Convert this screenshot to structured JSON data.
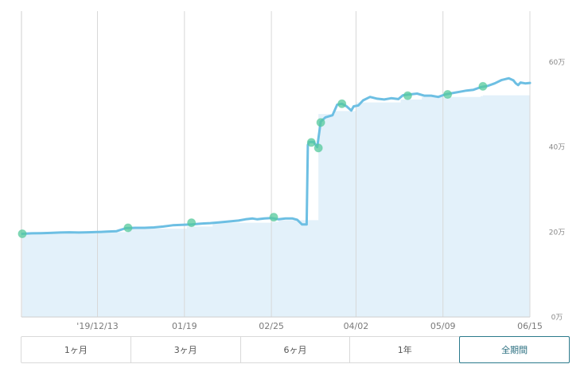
{
  "colors": {
    "line": "#6dbfe3",
    "area": "#e3f1fa",
    "marker": "#55c99c",
    "grid": "#d8d8d8",
    "active_tab_border": "#2b7a8c"
  },
  "chart_data": {
    "type": "line",
    "title": "",
    "xlabel": "",
    "ylabel": "",
    "x_tick_labels": [
      "'19/12/13",
      "01/19",
      "02/25",
      "04/02",
      "05/09",
      "06/15"
    ],
    "y_ticks": [
      0,
      200000,
      400000,
      600000
    ],
    "y_tick_labels": [
      "0万",
      "20万",
      "40万",
      "60万"
    ],
    "ylim": [
      0,
      720000
    ],
    "x_range_days": [
      0,
      216
    ],
    "x_tick_days": [
      32,
      69,
      106,
      142,
      179,
      216
    ],
    "grid": "vertical",
    "legend": "none",
    "series": [
      {
        "kind": "line",
        "points": [
          [
            0,
            196000
          ],
          [
            4,
            197000
          ],
          [
            8,
            197500
          ],
          [
            12,
            198000
          ],
          [
            16,
            199000
          ],
          [
            20,
            199500
          ],
          [
            24,
            199000
          ],
          [
            28,
            199500
          ],
          [
            32,
            200000
          ],
          [
            36,
            201000
          ],
          [
            40,
            202000
          ],
          [
            44,
            209000
          ],
          [
            48,
            210000
          ],
          [
            52,
            210000
          ],
          [
            56,
            211000
          ],
          [
            60,
            213000
          ],
          [
            64,
            216000
          ],
          [
            68,
            217000
          ],
          [
            72,
            218000
          ],
          [
            76,
            220000
          ],
          [
            80,
            221000
          ],
          [
            84,
            223000
          ],
          [
            88,
            225000
          ],
          [
            92,
            227000
          ],
          [
            95,
            230000
          ],
          [
            98,
            232000
          ],
          [
            100,
            230000
          ],
          [
            103,
            232000
          ],
          [
            106,
            233000
          ],
          [
            109,
            230000
          ],
          [
            112,
            232000
          ],
          [
            115,
            232000
          ],
          [
            117,
            229000
          ],
          [
            119,
            218000
          ],
          [
            121,
            218000
          ],
          [
            121.5,
            405000
          ],
          [
            122,
            412000
          ],
          [
            124,
            412000
          ],
          [
            125.5,
            400000
          ],
          [
            127,
            460000
          ],
          [
            129,
            470000
          ],
          [
            132,
            475000
          ],
          [
            134,
            500000
          ],
          [
            136,
            502000
          ],
          [
            138,
            496000
          ],
          [
            140,
            486000
          ],
          [
            141,
            496000
          ],
          [
            143,
            498000
          ],
          [
            145,
            510000
          ],
          [
            148,
            518000
          ],
          [
            151,
            514000
          ],
          [
            154,
            512000
          ],
          [
            157,
            515000
          ],
          [
            160,
            513000
          ],
          [
            162,
            522000
          ],
          [
            165,
            524000
          ],
          [
            168,
            526000
          ],
          [
            171,
            521000
          ],
          [
            174,
            521000
          ],
          [
            177,
            518000
          ],
          [
            180,
            524000
          ],
          [
            183,
            527000
          ],
          [
            186,
            530000
          ],
          [
            189,
            533000
          ],
          [
            192,
            535000
          ],
          [
            195,
            541000
          ],
          [
            198,
            544000
          ],
          [
            201,
            550000
          ],
          [
            204,
            558000
          ],
          [
            207,
            562000
          ],
          [
            209,
            557000
          ],
          [
            210,
            550000
          ],
          [
            211,
            546000
          ],
          [
            212,
            552000
          ],
          [
            214,
            550000
          ],
          [
            216,
            551000
          ]
        ]
      },
      {
        "kind": "area-step",
        "points": [
          [
            0,
            197000
          ],
          [
            32,
            200000
          ],
          [
            45,
            208000
          ],
          [
            70,
            213000
          ],
          [
            81,
            222000
          ],
          [
            106,
            224000
          ],
          [
            109,
            228000
          ],
          [
            121,
            228000
          ],
          [
            126,
            478000
          ],
          [
            133,
            485000
          ],
          [
            142,
            505000
          ],
          [
            161,
            512000
          ],
          [
            170,
            518000
          ],
          [
            195,
            520000
          ],
          [
            196,
            522000
          ],
          [
            216,
            522000
          ]
        ]
      }
    ],
    "markers": [
      [
        0,
        196000
      ],
      [
        45,
        210000
      ],
      [
        72,
        222000
      ],
      [
        107,
        235000
      ],
      [
        123,
        411000
      ],
      [
        126,
        398000
      ],
      [
        127,
        458000
      ],
      [
        136,
        502000
      ],
      [
        164,
        521000
      ],
      [
        181,
        524000
      ],
      [
        196,
        543000
      ]
    ]
  },
  "range_tabs": [
    {
      "label": "1ヶ月",
      "active": false
    },
    {
      "label": "3ヶ月",
      "active": false
    },
    {
      "label": "6ヶ月",
      "active": false
    },
    {
      "label": "1年",
      "active": false
    },
    {
      "label": "全期間",
      "active": true
    }
  ]
}
